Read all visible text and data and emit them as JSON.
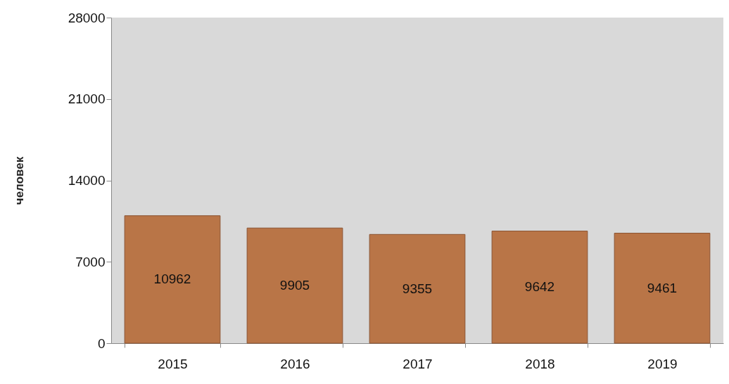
{
  "chart_data": {
    "type": "bar",
    "ylabel": "человек",
    "categories": [
      "2015",
      "2016",
      "2017",
      "2018",
      "2019"
    ],
    "values": [
      10962,
      9905,
      9355,
      9642,
      9461
    ],
    "color": "#b97547",
    "ylim": [
      0,
      28000
    ],
    "yticks": [
      0,
      7000,
      14000,
      21000,
      28000
    ],
    "grid": false,
    "data_labels": true
  }
}
